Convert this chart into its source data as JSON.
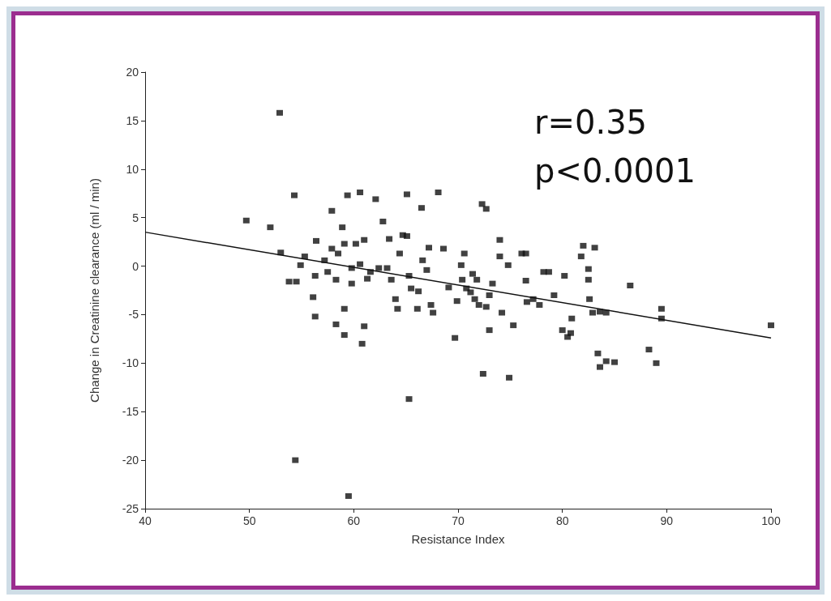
{
  "chart_data": {
    "type": "scatter",
    "xlabel": "Resistance Index",
    "ylabel": "Change in Creatinine clearance (ml / min)",
    "annotations": [
      "r=0.35",
      "p<0.0001"
    ],
    "xlim": [
      40,
      100
    ],
    "ylim": [
      -25,
      20
    ],
    "xticks": [
      40,
      50,
      60,
      70,
      80,
      90,
      100
    ],
    "yticks": [
      -25,
      -20,
      -15,
      -10,
      -5,
      0,
      5,
      10,
      15,
      20
    ],
    "grid": false,
    "marker": "square",
    "series": [
      {
        "color": "#111111",
        "x": [
          52.9,
          49.7,
          52.0,
          54.3,
          53.0,
          53.8,
          54.5,
          54.9,
          55.3,
          54.4,
          56.1,
          56.3,
          56.3,
          56.4,
          57.2,
          57.9,
          57.9,
          57.5,
          58.3,
          58.3,
          58.5,
          58.9,
          59.1,
          59.1,
          59.1,
          59.4,
          59.5,
          59.8,
          59.8,
          60.6,
          62.1,
          62.8,
          63.4,
          65.1,
          68.1,
          60.2,
          61.0,
          60.6,
          61.0,
          60.8,
          61.6,
          61.3,
          62.4,
          63.2,
          63.6,
          64.0,
          64.2,
          64.4,
          64.7,
          65.1,
          65.3,
          65.5,
          65.3,
          66.2,
          66.5,
          66.1,
          66.6,
          67.0,
          67.2,
          67.4,
          67.6,
          68.6,
          69.1,
          69.7,
          69.9,
          70.3,
          70.4,
          70.6,
          70.8,
          71.2,
          71.4,
          71.6,
          71.8,
          72.0,
          72.3,
          72.7,
          72.4,
          72.7,
          73.0,
          73.3,
          73.0,
          74.0,
          74.0,
          74.2,
          74.8,
          74.9,
          75.3,
          76.1,
          76.5,
          76.5,
          76.6,
          77.2,
          77.8,
          78.2,
          78.7,
          79.2,
          80.2,
          80.0,
          80.5,
          80.8,
          80.9,
          81.8,
          82.0,
          82.5,
          82.5,
          83.1,
          82.6,
          82.9,
          83.6,
          84.2,
          83.4,
          83.6,
          84.2,
          85.0,
          86.5,
          88.3,
          89.0,
          89.5,
          89.5,
          100.0
        ],
        "values": [
          15.8,
          4.7,
          4.0,
          7.3,
          1.4,
          -1.6,
          -1.6,
          0.1,
          1.0,
          -20.0,
          -3.2,
          -1.0,
          -5.2,
          2.6,
          0.6,
          5.7,
          1.8,
          -0.6,
          -1.4,
          -6.0,
          1.3,
          4.0,
          2.3,
          -4.4,
          -7.1,
          7.3,
          -23.7,
          -0.2,
          -1.8,
          7.6,
          6.9,
          4.6,
          2.8,
          7.4,
          7.6,
          2.3,
          2.7,
          0.2,
          -6.2,
          -8.0,
          -0.6,
          -1.3,
          -0.2,
          -0.2,
          -1.4,
          -3.4,
          -4.4,
          1.3,
          3.2,
          3.1,
          -1.0,
          -2.3,
          -13.7,
          -2.6,
          6.0,
          -4.4,
          0.6,
          -0.4,
          1.9,
          -4.0,
          -4.8,
          1.8,
          -2.2,
          -7.4,
          -3.6,
          0.1,
          -1.4,
          1.3,
          -2.3,
          -2.7,
          -0.8,
          -3.4,
          -1.4,
          -4.0,
          6.4,
          5.9,
          -11.1,
          -4.2,
          -3.0,
          -1.8,
          -6.6,
          2.7,
          1.0,
          -4.8,
          0.1,
          -11.5,
          -6.1,
          1.3,
          1.3,
          -1.5,
          -3.7,
          -3.4,
          -4.0,
          -0.6,
          -0.6,
          -3.0,
          -1.0,
          -6.6,
          -7.3,
          -6.9,
          -5.4,
          1.0,
          2.1,
          -0.3,
          -1.4,
          1.9,
          -3.4,
          -4.8,
          -4.7,
          -4.8,
          -9.0,
          -10.4,
          -9.8,
          -9.9,
          -2.0,
          -8.6,
          -10.0,
          -4.4,
          -5.4,
          -6.1
        ]
      },
      {
        "type": "line",
        "color": "#111111",
        "marker": "none",
        "x": [
          40,
          100
        ],
        "values": [
          3.5,
          -7.4
        ]
      }
    ]
  }
}
